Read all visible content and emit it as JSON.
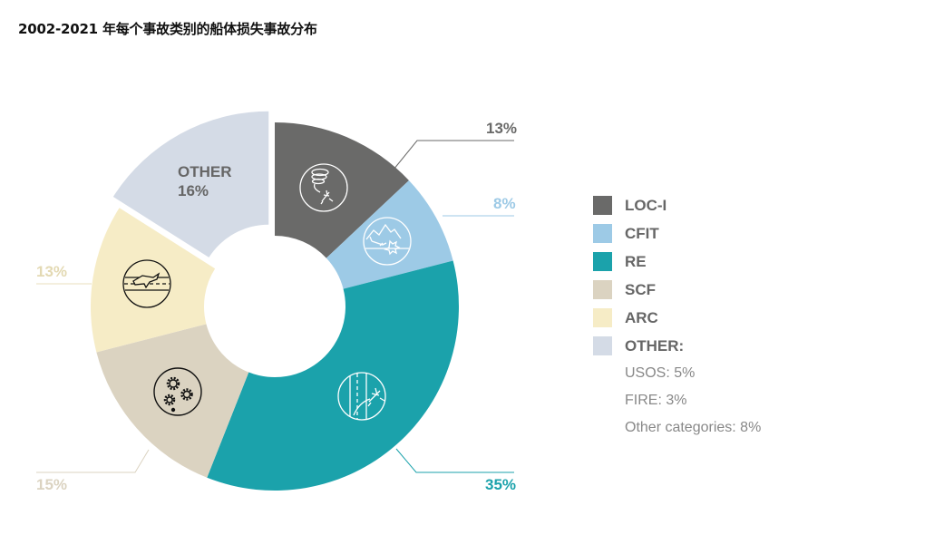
{
  "title": "2002-2021 年每个事故类别的船体损失事故分布",
  "chart_data": {
    "type": "pie",
    "variant": "donut",
    "title": "2002-2021 年每个事故类别的船体损失事故分布",
    "categories": [
      "LOC-I",
      "CFIT",
      "RE",
      "SCF",
      "ARC",
      "OTHER"
    ],
    "values": [
      13,
      8,
      35,
      15,
      13,
      16
    ],
    "unit": "%",
    "colors": [
      "#6a6a69",
      "#9dcae6",
      "#1ba2ab",
      "#dbd3c1",
      "#f6ecc6",
      "#d4dbe6"
    ],
    "exploded": [
      "OTHER"
    ],
    "legend_position": "right",
    "other_breakdown": [
      {
        "label": "USOS",
        "value": 5
      },
      {
        "label": "FIRE",
        "value": 3
      },
      {
        "label": "Other categories",
        "value": 8
      }
    ]
  },
  "labels": {
    "loci": "13%",
    "cfit": "8%",
    "re": "35%",
    "scf": "15%",
    "arc": "13%",
    "other_name": "OTHER",
    "other_pct": "16%"
  },
  "label_colors": {
    "loci": "#6a6a69",
    "cfit": "#9dcae6",
    "re": "#1ba2ab",
    "scf": "#dbd3c1",
    "arc": "#e3d9b3"
  },
  "legend": {
    "items": [
      {
        "label": "LOC-I",
        "color": "#6a6a69"
      },
      {
        "label": "CFIT",
        "color": "#9dcae6"
      },
      {
        "label": "RE",
        "color": "#1ba2ab"
      },
      {
        "label": "SCF",
        "color": "#dbd3c1"
      },
      {
        "label": "ARC",
        "color": "#f6ecc6"
      },
      {
        "label": "OTHER:",
        "color": "#d4dbe6"
      }
    ],
    "sub_items": [
      "USOS: 5%",
      "FIRE: 3%",
      "Other categories: 8%"
    ]
  }
}
